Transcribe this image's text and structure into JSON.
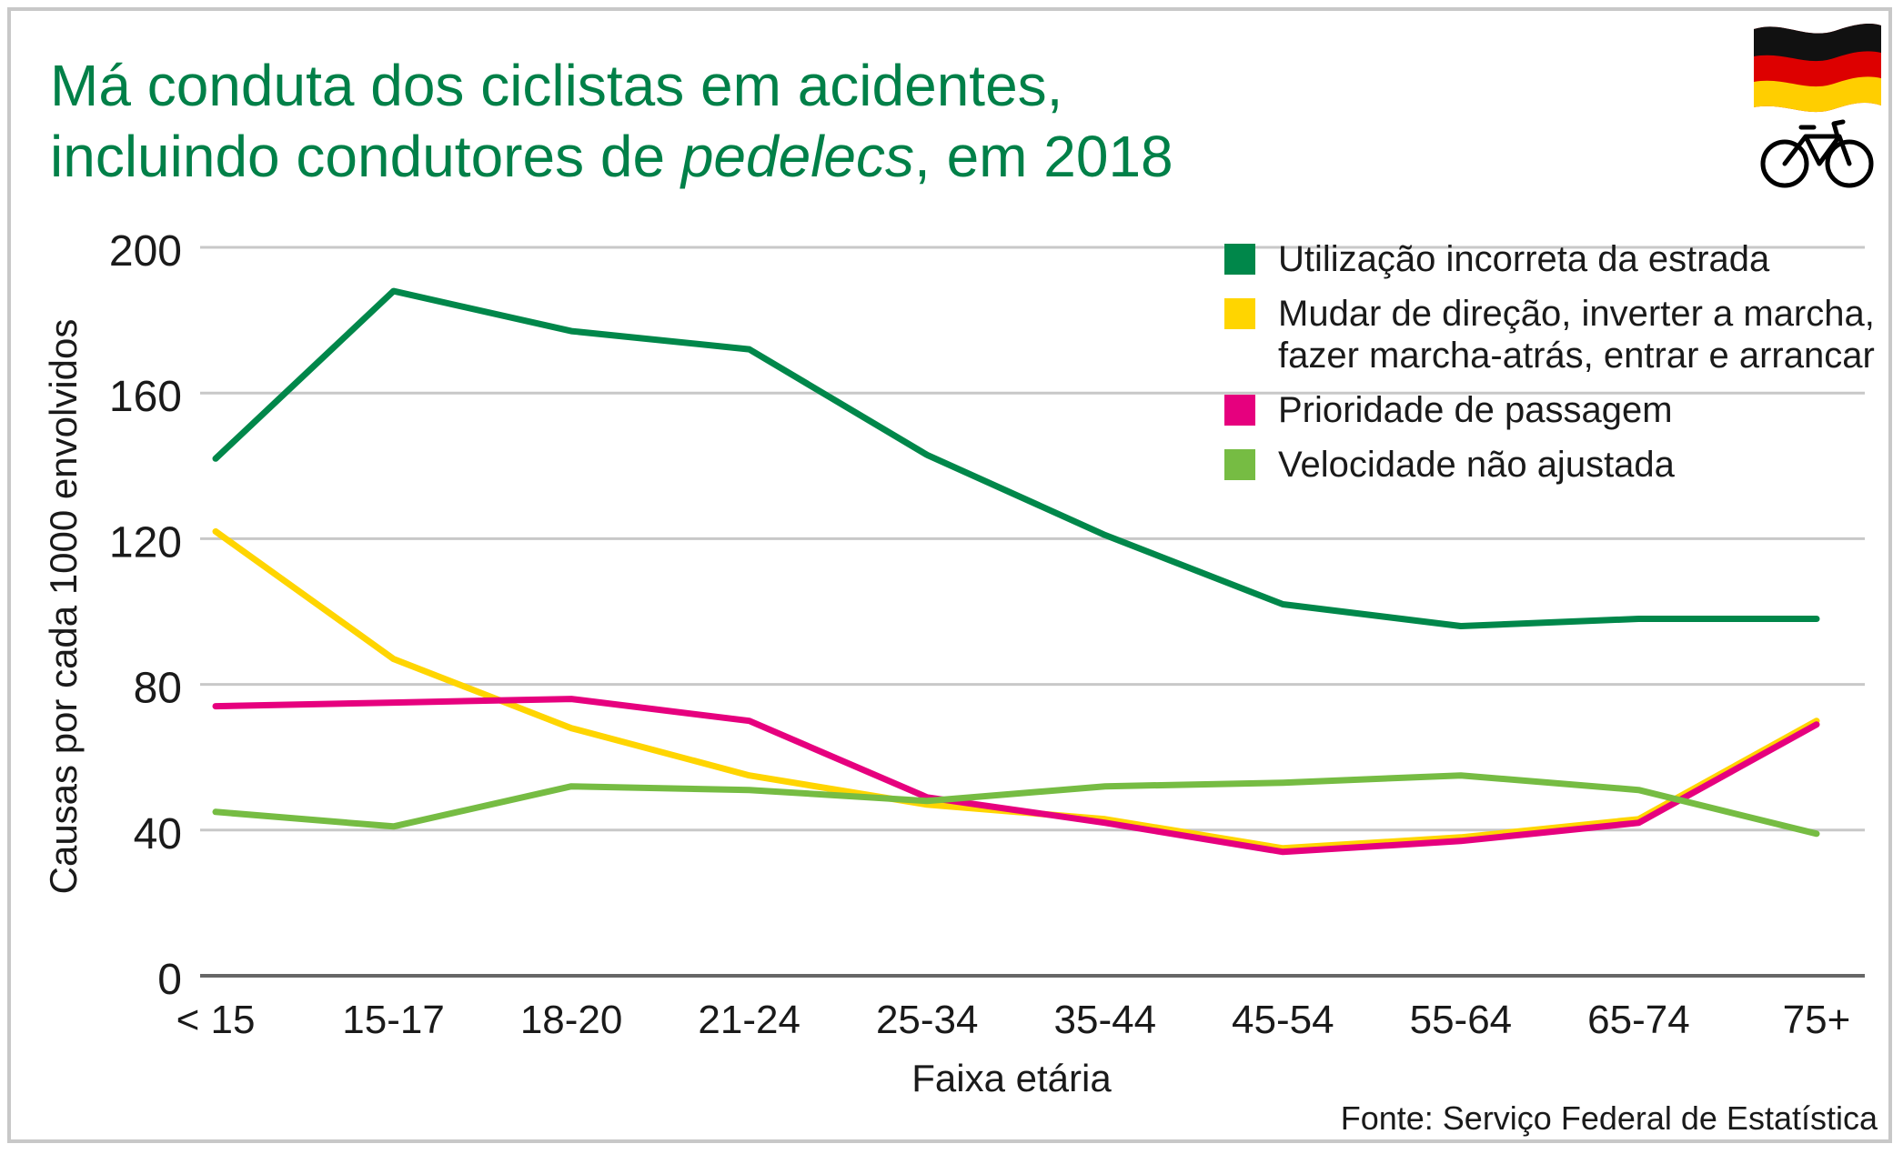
{
  "title": {
    "line1": "Má conduta dos ciclistas em acidentes,",
    "line2_before": "incluindo condutores de ",
    "line2_italic": "pedelecs",
    "line2_after": ", em 2018"
  },
  "source": "Fonte: Serviço Federal de Estatística",
  "icons": [
    "germany-flag-icon",
    "bicycle-icon"
  ],
  "colors": {
    "title": "#008048",
    "utilizacao": "#00874a",
    "mudar": "#ffd500",
    "prioridade": "#e6007e",
    "velocidade": "#76bc43",
    "grid": "#c8c8c8",
    "axis": "#666666"
  },
  "chart_data": {
    "type": "line",
    "xlabel": "Faixa etária",
    "ylabel": "Causas por cada 1000 envolvidos",
    "categories": [
      "< 15",
      "15-17",
      "18-20",
      "21-24",
      "25-34",
      "35-44",
      "45-54",
      "55-64",
      "65-74",
      "75+"
    ],
    "ylim": [
      0,
      200
    ],
    "yticks": [
      0,
      40,
      80,
      120,
      160,
      200
    ],
    "grid": true,
    "legend_position": "top-right",
    "series": [
      {
        "name": "Utilização incorreta da estrada",
        "color": "#00874a",
        "values": [
          142,
          188,
          177,
          172,
          143,
          121,
          102,
          96,
          98,
          98
        ]
      },
      {
        "name": "Mudar de direção, inverter a marcha, fazer marcha-atrás, entrar e arrancar",
        "legend_lines": [
          "Mudar de direção, inverter a marcha,",
          "fazer marcha-atrás, entrar e arrancar"
        ],
        "color": "#ffd500",
        "values": [
          122,
          87,
          68,
          55,
          47,
          43,
          35,
          38,
          43,
          70
        ]
      },
      {
        "name": "Prioridade de passagem",
        "color": "#e6007e",
        "values": [
          74,
          75,
          76,
          70,
          49,
          42,
          34,
          37,
          42,
          69
        ]
      },
      {
        "name": "Velocidade não ajustada",
        "color": "#76bc43",
        "values": [
          45,
          41,
          52,
          51,
          48,
          52,
          53,
          55,
          51,
          39
        ]
      }
    ]
  }
}
